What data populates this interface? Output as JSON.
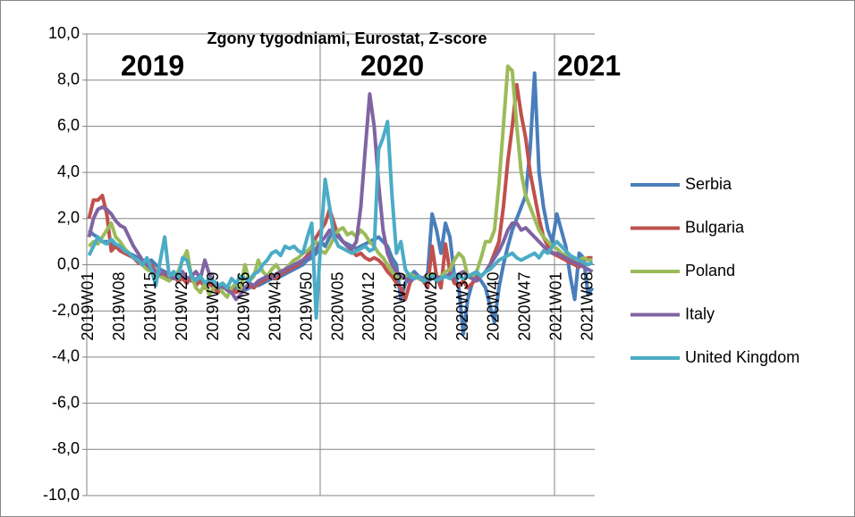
{
  "chart_data": {
    "type": "line",
    "title": "Zgony tygodniami, Eurostat, Z-score",
    "annotations": [
      "2019",
      "2020",
      "2021"
    ],
    "categories": [
      "2019W01",
      null,
      null,
      null,
      null,
      null,
      null,
      "2019W08",
      null,
      null,
      null,
      null,
      null,
      null,
      "2019W15",
      null,
      null,
      null,
      null,
      null,
      null,
      "2019W22",
      null,
      null,
      null,
      null,
      null,
      null,
      "2019W29",
      null,
      null,
      null,
      null,
      null,
      null,
      "2019W36",
      null,
      null,
      null,
      null,
      null,
      null,
      "2019W43",
      null,
      null,
      null,
      null,
      null,
      null,
      "2019W50",
      null,
      null,
      null,
      null,
      null,
      null,
      "2020W05",
      null,
      null,
      null,
      null,
      null,
      null,
      "2020W12",
      null,
      null,
      null,
      null,
      null,
      null,
      "2020W19",
      null,
      null,
      null,
      null,
      null,
      null,
      "2020W26",
      null,
      null,
      null,
      null,
      null,
      null,
      "2020W33",
      null,
      null,
      null,
      null,
      null,
      null,
      "2020W40",
      null,
      null,
      null,
      null,
      null,
      null,
      "2020W47",
      null,
      null,
      null,
      null,
      null,
      null,
      "2021W01",
      null,
      null,
      null,
      null,
      null,
      null,
      "2021W08",
      null
    ],
    "ylim": [
      -10,
      10
    ],
    "yticks": [
      {
        "value": -10,
        "label": "-10,0"
      },
      {
        "value": -8,
        "label": "-8,0"
      },
      {
        "value": -6,
        "label": "-6,0"
      },
      {
        "value": -4,
        "label": "-4,0"
      },
      {
        "value": -2,
        "label": "-2,0"
      },
      {
        "value": 0,
        "label": "0,0"
      },
      {
        "value": 2,
        "label": "2,0"
      },
      {
        "value": 4,
        "label": "4,0"
      },
      {
        "value": 6,
        "label": "6,0"
      },
      {
        "value": 8,
        "label": "8,0"
      },
      {
        "value": 10,
        "label": "10,0"
      }
    ],
    "grid": true,
    "legend": "right",
    "series": [
      {
        "name": "Serbia",
        "color": "#4a7ebb",
        "values": [
          1.5,
          1.3,
          1.2,
          1.0,
          1.0,
          0.9,
          0.8,
          0.7,
          0.6,
          0.5,
          0.4,
          0.3,
          0.2,
          0.1,
          0.2,
          0.0,
          -0.2,
          -0.3,
          -0.4,
          -0.5,
          -0.5,
          -0.6,
          -0.6,
          -0.7,
          -0.6,
          -0.7,
          -0.8,
          -0.8,
          -0.9,
          -0.9,
          -1.0,
          -1.0,
          -1.1,
          -1.0,
          -1.0,
          -1.1,
          -1.0,
          -0.9,
          -0.9,
          -0.8,
          -0.7,
          -0.6,
          -0.6,
          -0.5,
          -0.4,
          -0.3,
          -0.2,
          -0.1,
          0.0,
          0.2,
          0.3,
          0.5,
          1.0,
          0.8,
          1.2,
          1.5,
          1.3,
          1.0,
          0.9,
          0.8,
          0.7,
          0.8,
          0.9,
          1.0,
          1.1,
          1.2,
          1.0,
          0.8,
          0.3,
          0.0,
          -1.5,
          -0.8,
          -0.5,
          -0.3,
          -0.5,
          -0.6,
          -0.4,
          2.2,
          1.5,
          0.5,
          1.8,
          1.2,
          -0.5,
          -1.0,
          -3.0,
          -1.5,
          -0.8,
          -0.5,
          -0.7,
          -1.0,
          -1.8,
          -2.5,
          -1.0,
          0.0,
          0.8,
          1.5,
          2.0,
          2.5,
          3.0,
          5.0,
          8.3,
          4.0,
          2.5,
          1.5,
          1.0,
          2.2,
          1.5,
          0.8,
          -0.5,
          -1.5,
          0.5,
          0.3,
          -1.3,
          -1.0
        ]
      },
      {
        "name": "Bulgaria",
        "color": "#c0504d",
        "values": [
          2.0,
          2.8,
          2.8,
          3.0,
          2.2,
          0.6,
          0.8,
          0.6,
          0.5,
          0.4,
          0.3,
          0.1,
          0.0,
          -0.2,
          0.0,
          -0.3,
          -0.5,
          -0.4,
          -0.6,
          -0.5,
          -0.7,
          -0.6,
          -0.8,
          -0.5,
          -0.9,
          -0.7,
          -1.0,
          -0.8,
          -1.0,
          -1.2,
          -0.9,
          -1.1,
          -1.0,
          -1.2,
          -1.1,
          -1.0,
          -0.9,
          -1.0,
          -0.8,
          -0.7,
          -0.6,
          -0.5,
          -0.6,
          -0.4,
          -0.3,
          -0.2,
          -0.1,
          0.0,
          0.2,
          0.4,
          0.8,
          1.2,
          1.5,
          1.8,
          2.4,
          1.8,
          1.2,
          1.0,
          0.8,
          0.6,
          0.4,
          0.5,
          0.3,
          0.2,
          0.3,
          0.2,
          0.0,
          -0.3,
          -0.5,
          -0.8,
          -1.0,
          -1.5,
          -0.8,
          -0.5,
          -0.6,
          -0.7,
          -1.0,
          0.8,
          -0.5,
          -1.0,
          0.9,
          -0.3,
          -0.8,
          -0.9,
          -0.7,
          -1.0,
          -0.8,
          -0.6,
          -0.5,
          -0.3,
          0.0,
          0.5,
          1.0,
          2.5,
          4.5,
          6.0,
          7.8,
          6.5,
          5.5,
          4.0,
          3.0,
          2.0,
          1.2,
          0.8,
          0.5,
          0.4,
          0.3,
          0.2,
          0.1,
          0.0,
          -0.1,
          0.2,
          0.3,
          0.3
        ]
      },
      {
        "name": "Poland",
        "color": "#9bbb59",
        "values": [
          0.8,
          1.0,
          0.9,
          1.2,
          1.5,
          1.8,
          1.2,
          1.0,
          0.7,
          0.5,
          0.3,
          0.2,
          0.0,
          -0.2,
          -0.3,
          -0.4,
          -0.5,
          -0.6,
          -0.7,
          -0.5,
          -0.3,
          0.2,
          0.6,
          -0.5,
          -1.0,
          -1.2,
          -0.8,
          -1.3,
          -1.0,
          -0.9,
          -1.2,
          -1.4,
          -1.0,
          -0.8,
          -1.1,
          0.0,
          -0.7,
          -0.5,
          0.2,
          -0.3,
          -0.5,
          -0.2,
          0.0,
          -0.3,
          -0.2,
          0.0,
          0.2,
          0.3,
          0.5,
          0.6,
          0.8,
          1.0,
          0.6,
          0.5,
          0.8,
          1.2,
          1.5,
          1.6,
          1.3,
          1.4,
          1.2,
          1.5,
          1.3,
          1.0,
          0.8,
          0.5,
          0.3,
          0.0,
          -0.3,
          -0.5,
          -0.6,
          -0.5,
          -0.4,
          -0.5,
          -0.6,
          -0.7,
          -0.5,
          -0.4,
          -0.6,
          -0.5,
          -0.3,
          -0.2,
          0.2,
          0.5,
          0.3,
          -0.5,
          -0.5,
          -0.3,
          0.3,
          1.0,
          1.0,
          1.5,
          3.5,
          6.0,
          8.6,
          8.4,
          6.0,
          4.0,
          3.0,
          2.5,
          2.0,
          1.5,
          1.2,
          1.0,
          0.8,
          0.7,
          0.5,
          0.4,
          0.3,
          0.2,
          0.2,
          0.3,
          0.2,
          0.2
        ]
      },
      {
        "name": "Italy",
        "color": "#8064a2",
        "values": [
          1.2,
          2.0,
          2.4,
          2.5,
          2.4,
          2.2,
          1.9,
          1.7,
          1.6,
          1.2,
          0.8,
          0.5,
          0.2,
          0.0,
          -0.2,
          -0.3,
          -0.4,
          -0.3,
          -0.5,
          -0.6,
          -0.4,
          -0.3,
          -0.6,
          -0.5,
          -0.3,
          -0.6,
          0.2,
          -0.4,
          -0.8,
          -1.0,
          -0.9,
          -1.1,
          -1.2,
          -1.5,
          -1.3,
          -1.0,
          -0.8,
          -0.9,
          -0.7,
          -0.6,
          -0.5,
          -0.6,
          -0.4,
          -0.3,
          -0.2,
          -0.1,
          0.0,
          0.1,
          0.2,
          0.3,
          0.5,
          0.7,
          1.0,
          1.2,
          1.5,
          1.3,
          1.2,
          1.0,
          0.8,
          0.7,
          1.0,
          2.5,
          5.0,
          7.4,
          6.0,
          3.5,
          1.5,
          0.5,
          0.0,
          -0.3,
          -0.5,
          -0.6,
          -0.7,
          -0.6,
          -0.5,
          -0.6,
          -0.7,
          -0.6,
          -0.5,
          -0.6,
          -0.5,
          -0.4,
          -0.5,
          -0.4,
          -0.3,
          -0.5,
          -0.6,
          -0.7,
          -0.5,
          -0.3,
          0.0,
          0.3,
          0.6,
          1.0,
          1.5,
          1.8,
          1.8,
          1.5,
          1.6,
          1.4,
          1.2,
          1.0,
          0.8,
          0.6,
          0.5,
          0.5,
          0.4,
          0.3,
          0.2,
          0.1,
          0.0,
          -0.1,
          -0.2,
          -0.3
        ]
      },
      {
        "name": "United Kingdom",
        "color": "#4bacc6",
        "values": [
          0.4,
          0.8,
          1.2,
          1.0,
          0.9,
          1.1,
          0.9,
          0.8,
          0.6,
          0.5,
          0.3,
          0.2,
          0.0,
          0.3,
          -0.2,
          -0.9,
          0.2,
          1.2,
          -0.5,
          -0.3,
          -0.6,
          0.3,
          0.2,
          -0.5,
          -0.7,
          -0.5,
          -0.8,
          -0.6,
          -0.7,
          -0.9,
          -0.8,
          -1.0,
          -0.6,
          -0.8,
          -0.5,
          -0.6,
          -0.7,
          -0.4,
          -0.3,
          0.0,
          0.2,
          0.5,
          0.6,
          0.4,
          0.8,
          0.7,
          0.8,
          0.6,
          0.5,
          1.2,
          1.8,
          -2.3,
          1.0,
          3.7,
          2.5,
          1.2,
          0.8,
          0.7,
          0.6,
          0.5,
          0.6,
          0.7,
          0.8,
          0.6,
          0.7,
          5.0,
          5.5,
          6.2,
          3.0,
          0.5,
          1.0,
          -0.2,
          -0.5,
          -0.6,
          -0.5,
          -0.7,
          -0.6,
          -0.5,
          -0.7,
          -0.6,
          -0.5,
          -0.6,
          -0.4,
          -0.5,
          -0.6,
          -0.5,
          -0.4,
          -0.3,
          -0.5,
          -0.3,
          -0.2,
          0.0,
          0.2,
          0.3,
          0.4,
          0.5,
          0.3,
          0.2,
          0.3,
          0.4,
          0.5,
          0.3,
          0.6,
          0.5,
          0.8,
          1.0,
          0.8,
          0.6,
          0.4,
          0.3,
          0.2,
          0.1,
          0.0,
          0.1
        ]
      }
    ]
  }
}
